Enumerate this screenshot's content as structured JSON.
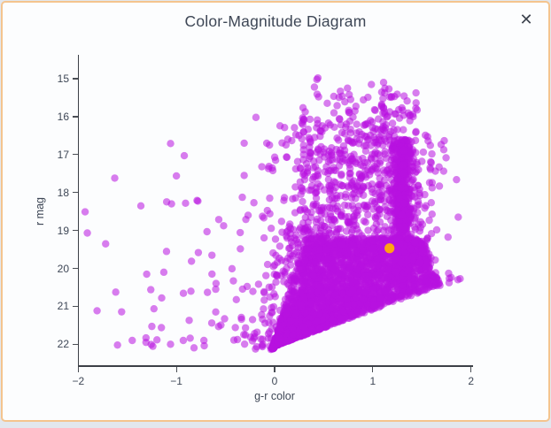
{
  "modal": {
    "close_icon": "✕"
  },
  "colors": {
    "dialog_border": "#f4c48e",
    "dialog_background": "#fcfdfe",
    "page_background": "#e2e7ee",
    "axis_line": "#3c4047",
    "text": "#3e4756",
    "marker": "#b812e0",
    "highlight": "#ffa413"
  },
  "chart_data": {
    "type": "scatter",
    "title": "Color-Magnitude Diagram",
    "xlabel": "g-r color",
    "ylabel": "r mag",
    "xlim": [
      -2,
      2
    ],
    "ylim": [
      15,
      22
    ],
    "y_axis_inverted": true,
    "grid": false,
    "legend": "none",
    "x_ticks": [
      -2,
      -1,
      0,
      1,
      2
    ],
    "x_tick_labels": [
      "−2",
      "−1",
      "0",
      "1",
      "2"
    ],
    "y_ticks": [
      15,
      16,
      17,
      18,
      19,
      20,
      21,
      22
    ],
    "y_tick_labels": [
      "15",
      "16",
      "17",
      "18",
      "19",
      "20",
      "21",
      "22"
    ],
    "marker": {
      "color": "#b812e0",
      "opacity": 0.55,
      "radius_px": 4.2
    },
    "highlight_point": {
      "x": 1.17,
      "y": 19.47,
      "color": "#ffa413",
      "radius_px": 5.6
    },
    "boundaries": {
      "faint_cut": {
        "r0": 22.05,
        "slope": 0.96,
        "tolerance": 0.06
      },
      "wedge_left": {
        "g0": -0.02,
        "k": 0.12,
        "r_ref": 22.05
      },
      "wedge_right": {
        "g0": 1.52,
        "k": 0.14,
        "r_ref": 19.25
      }
    },
    "point_generation": {
      "seed": 11,
      "clusters": [
        {
          "kind": "wedge",
          "n": 3200,
          "y_range": [
            19.2,
            22.12
          ]
        },
        {
          "kind": "box",
          "n": 650,
          "x_range": [
            0.26,
            1.44
          ],
          "y_range": [
            15.68,
            19.55
          ],
          "y_pow": 0.85,
          "edge_jitter": 0.03
        },
        {
          "kind": "gauss_column",
          "n": 600,
          "mu": 1.3,
          "sigma": 0.055,
          "clip": [
            1.13,
            1.47
          ],
          "y_range": [
            16.6,
            20.3
          ]
        },
        {
          "kind": "top_fringe",
          "n": 30,
          "x_range": [
            0.32,
            1.45
          ],
          "base_y": 15.68,
          "sigma": 0.3,
          "min_y": 14.98
        },
        {
          "kind": "left_fringe",
          "n": 110,
          "y_range": [
            18.9,
            22.15
          ],
          "sigma": 0.17
        },
        {
          "kind": "left_band",
          "n": 45,
          "y_range": [
            16.2,
            19.2
          ],
          "base_x": 0.3,
          "sigma": 0.24
        },
        {
          "kind": "right_fringe",
          "n": 55,
          "y_range": [
            16.4,
            20.5
          ],
          "sigma": 0.13,
          "base_x": 1.45
        },
        {
          "kind": "field",
          "n": 55,
          "x_range": [
            -1.95,
            -0.05
          ],
          "y_range": [
            16.2,
            22.15
          ],
          "y_pow": 0.55
        }
      ]
    },
    "outlier_points": [
      [
        -1.93,
        18.51
      ],
      [
        -0.19,
        16.02
      ],
      [
        -0.31,
        16.7
      ],
      [
        -0.08,
        16.7
      ],
      [
        -0.92,
        17.03
      ],
      [
        -0.13,
        17.32
      ],
      [
        -0.31,
        17.55
      ],
      [
        -0.05,
        18.15
      ],
      [
        -0.79,
        18.21
      ],
      [
        -1.05,
        18.3
      ],
      [
        -0.27,
        18.6
      ],
      [
        -0.11,
        18.67
      ],
      [
        0.43,
        15.02
      ],
      [
        0.67,
        15.33
      ],
      [
        1.19,
        15.49
      ],
      [
        1.87,
        18.65
      ],
      [
        -1.15,
        20.78
      ],
      [
        -1.25,
        21.53
      ],
      [
        -1.31,
        21.95
      ],
      [
        -1.06,
        22.0
      ],
      [
        -0.93,
        21.9
      ],
      [
        -0.87,
        21.37
      ],
      [
        -0.86,
        21.84
      ],
      [
        -0.72,
        21.9
      ],
      [
        -0.64,
        21.44
      ],
      [
        -0.6,
        20.55
      ],
      [
        -0.42,
        20.33
      ],
      [
        -0.4,
        21.56
      ],
      [
        -1.45,
        21.9
      ],
      [
        -1.6,
        22.02
      ]
    ]
  }
}
